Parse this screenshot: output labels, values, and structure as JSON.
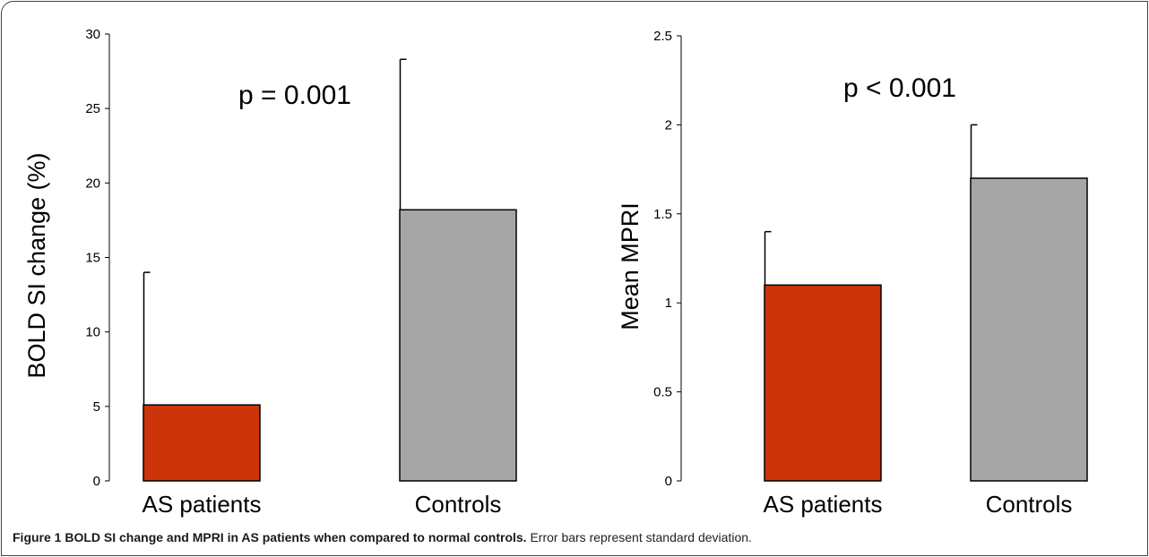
{
  "chart_data": [
    {
      "type": "bar",
      "categories": [
        "AS patients",
        "Controls"
      ],
      "values": [
        5.1,
        18.2
      ],
      "error": [
        8.9,
        10.1
      ],
      "colors": [
        "#cc3509",
        "#a6a6a6"
      ],
      "ylabel": "BOLD SI change (%)",
      "ylim": [
        0,
        30
      ],
      "yticks": [
        "0",
        "5",
        "10",
        "15",
        "20",
        "25",
        "30"
      ],
      "annotation": "p = 0.001",
      "grid": false
    },
    {
      "type": "bar",
      "categories": [
        "AS patients",
        "Controls"
      ],
      "values": [
        1.1,
        1.7
      ],
      "error": [
        0.3,
        0.3
      ],
      "colors": [
        "#cc3509",
        "#a6a6a6"
      ],
      "ylabel": "Mean MPRI",
      "ylim": [
        0,
        2.5
      ],
      "yticks": [
        "0",
        "0.5",
        "1",
        "1.5",
        "2",
        "2.5"
      ],
      "annotation": "p < 0.001",
      "grid": false
    }
  ],
  "caption": {
    "label": "Figure 1 BOLD SI change and MPRI in AS patients when compared to normal controls.",
    "text": " Error bars represent standard deviation."
  }
}
